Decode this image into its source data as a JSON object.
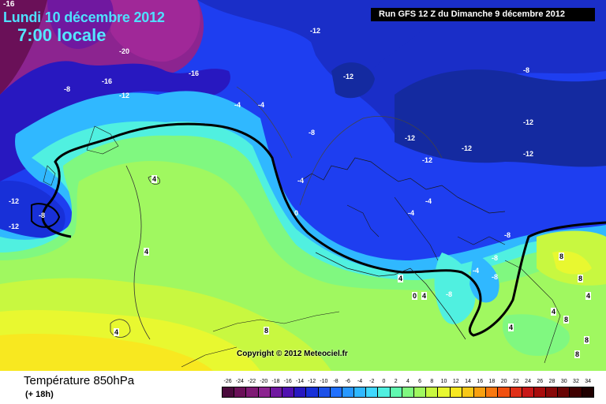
{
  "header": {
    "corner_value": "-16",
    "date": "Lundi 10 décembre 2012",
    "time": "7:00 locale",
    "run": "Run GFS 12 Z du Dimanche 9 décembre 2012"
  },
  "map": {
    "copyright": "Copyright © 2012 Meteociel.fr",
    "labels": [
      "-20",
      "-16",
      "-16",
      "-12",
      "-8",
      "-12",
      "-12",
      "-8",
      "-12",
      "-4",
      "-4",
      "-8",
      "-12",
      "-12",
      "-12",
      "-12",
      "-4",
      "-4",
      "-12",
      "-8",
      "-12",
      "0",
      "-4",
      "-4",
      "-8",
      "-8",
      "-8",
      "-8",
      "4",
      "4",
      "4",
      "0",
      "4",
      "4",
      "4",
      "8",
      "8",
      "8",
      "8",
      "4",
      "4",
      "8",
      "8"
    ]
  },
  "legend": {
    "title": "Température 850hPa",
    "subtitle": "(+ 18h)",
    "ticks": [
      "-26",
      "-24",
      "-22",
      "-20",
      "-18",
      "-16",
      "-14",
      "-12",
      "-10",
      "-8",
      "-6",
      "-4",
      "-2",
      "0",
      "2",
      "4",
      "6",
      "8",
      "10",
      "12",
      "14",
      "16",
      "18",
      "20",
      "22",
      "24",
      "26",
      "28",
      "30",
      "32",
      "34"
    ],
    "colors": [
      "#4a0a3c",
      "#6a1058",
      "#7e1a74",
      "#8c2490",
      "#7018a0",
      "#5010b0",
      "#2818c0",
      "#1830d8",
      "#1c50e8",
      "#2070ff",
      "#2898ff",
      "#30b8ff",
      "#40d8ff",
      "#50f0e0",
      "#60f8b0",
      "#80f880",
      "#a0f860",
      "#c8f840",
      "#e8f830",
      "#f8e820",
      "#f8c818",
      "#f8a010",
      "#f87810",
      "#f05010",
      "#e03018",
      "#c81818",
      "#a80c0c",
      "#880808",
      "#680404",
      "#400000",
      "#200000"
    ]
  }
}
